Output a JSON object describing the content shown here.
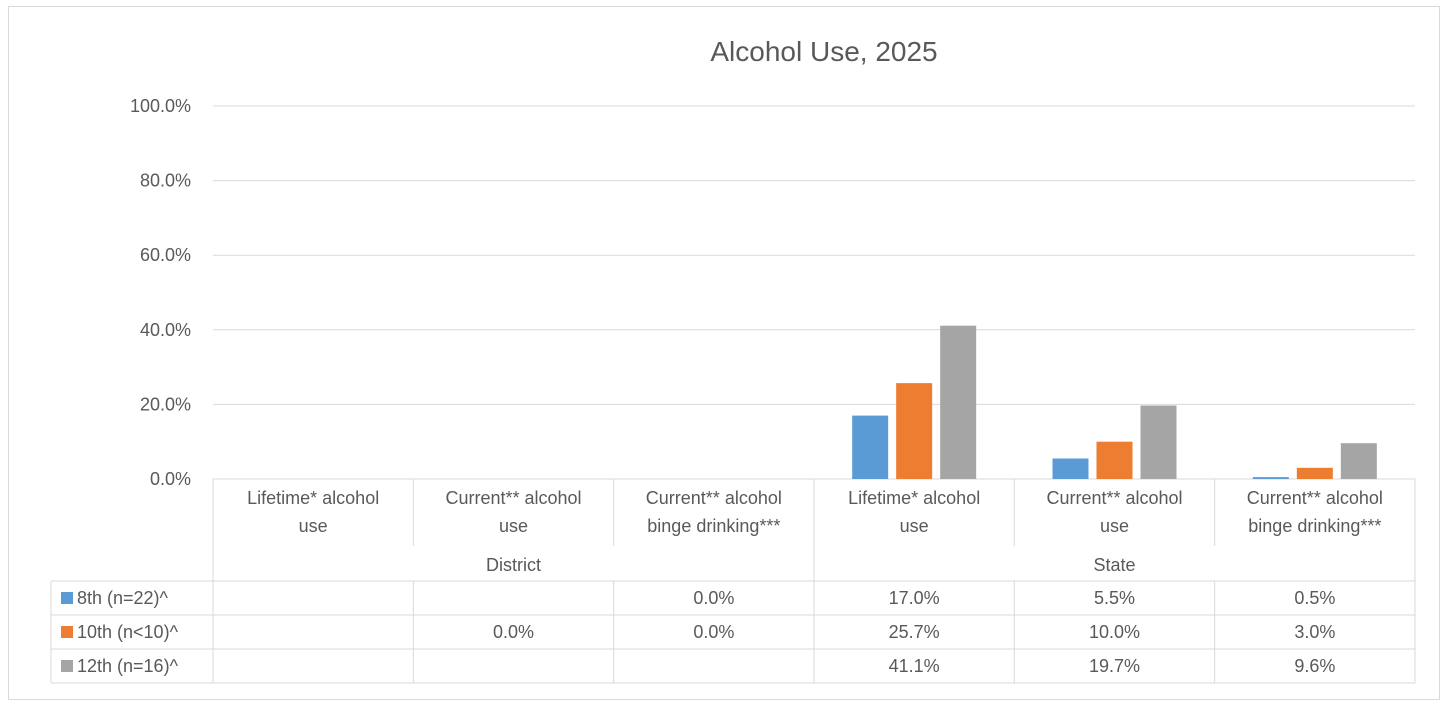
{
  "chart_data": {
    "type": "bar",
    "title": "Alcohol Use, 2025",
    "xlabel": "",
    "ylabel": "",
    "ylim": [
      0,
      100
    ],
    "yticks": [
      "0.0%",
      "20.0%",
      "40.0%",
      "60.0%",
      "80.0%",
      "100.0%"
    ],
    "grid": true,
    "legend": "data-table",
    "groups": [
      "District",
      "State"
    ],
    "categories": [
      {
        "group": "District",
        "label": [
          "Lifetime* alcohol",
          "use"
        ]
      },
      {
        "group": "District",
        "label": [
          "Current** alcohol",
          "use"
        ]
      },
      {
        "group": "District",
        "label": [
          "Current** alcohol",
          "binge drinking***"
        ]
      },
      {
        "group": "State",
        "label": [
          "Lifetime* alcohol",
          "use"
        ]
      },
      {
        "group": "State",
        "label": [
          "Current** alcohol",
          "use"
        ]
      },
      {
        "group": "State",
        "label": [
          "Current** alcohol",
          "binge drinking***"
        ]
      }
    ],
    "series": [
      {
        "name": "8th (n=22)^",
        "color": "#5b9bd5",
        "values": [
          null,
          null,
          0.0,
          17.0,
          5.5,
          0.5
        ],
        "labels": [
          "",
          "",
          "0.0%",
          "17.0%",
          "5.5%",
          "0.5%"
        ]
      },
      {
        "name": "10th (n<10)^",
        "color": "#ed7d31",
        "values": [
          null,
          0.0,
          0.0,
          25.7,
          10.0,
          3.0
        ],
        "labels": [
          "",
          "0.0%",
          "0.0%",
          "25.7%",
          "10.0%",
          "3.0%"
        ]
      },
      {
        "name": "12th (n=16)^",
        "color": "#a5a5a5",
        "values": [
          null,
          null,
          null,
          41.1,
          19.7,
          9.6
        ],
        "labels": [
          "",
          "",
          "",
          "41.1%",
          "19.7%",
          "9.6%"
        ]
      }
    ]
  }
}
